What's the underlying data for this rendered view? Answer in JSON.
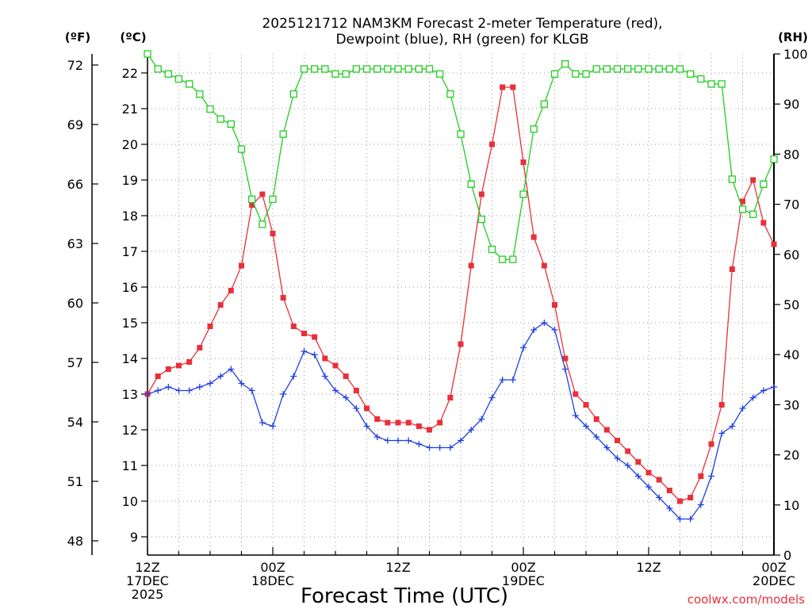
{
  "chart_data": {
    "type": "line",
    "title_line1": "2025121712 NAM3KM Forecast 2-meter Temperature (red),",
    "title_line2": "Dewpoint (blue), RH (green) for KLGB",
    "xlabel": "Forecast Time (UTC)",
    "credit": "coolwx.com/models",
    "units": {
      "f": "(ºF)",
      "c": "(ºC)",
      "rh": "(RH)"
    },
    "x_range_hours": [
      0,
      60
    ],
    "c_range": [
      8.5,
      22.5
    ],
    "rh_range": [
      0,
      100
    ],
    "x_ticks": [
      {
        "hour": 0,
        "lines": [
          "12Z",
          "17DEC",
          "2025"
        ]
      },
      {
        "hour": 12,
        "lines": [
          "00Z",
          "18DEC"
        ]
      },
      {
        "hour": 24,
        "lines": [
          "12Z"
        ]
      },
      {
        "hour": 36,
        "lines": [
          "00Z",
          "19DEC"
        ]
      },
      {
        "hour": 48,
        "lines": [
          "12Z"
        ]
      },
      {
        "hour": 60,
        "lines": [
          "00Z",
          "20DEC"
        ]
      }
    ],
    "c_ticks": [
      9,
      10,
      11,
      12,
      13,
      14,
      15,
      16,
      17,
      18,
      19,
      20,
      21,
      22
    ],
    "f_ticks": [
      48,
      51,
      54,
      57,
      60,
      63,
      66,
      69,
      72
    ],
    "rh_ticks": [
      0,
      10,
      20,
      30,
      40,
      50,
      60,
      70,
      80,
      90,
      100
    ],
    "series": [
      {
        "name": "Temperature (C)",
        "axis": "c",
        "color": "#e8303a",
        "marker": "filled-square",
        "values": [
          13.0,
          13.5,
          13.7,
          13.8,
          13.9,
          14.3,
          14.9,
          15.5,
          15.9,
          16.6,
          18.3,
          18.6,
          17.5,
          15.7,
          14.9,
          14.7,
          14.6,
          14.0,
          13.8,
          13.5,
          13.1,
          12.6,
          12.3,
          12.2,
          12.2,
          12.2,
          12.1,
          12.0,
          12.2,
          12.9,
          14.4,
          16.6,
          18.6,
          20.0,
          21.6,
          21.6,
          19.5,
          17.4,
          16.6,
          15.5,
          14.0,
          13.0,
          12.7,
          12.3,
          12.0,
          11.7,
          11.4,
          11.1,
          10.8,
          10.6,
          10.3,
          10.0,
          10.1,
          10.7,
          11.6,
          12.7,
          16.5,
          18.4,
          19.0,
          17.8,
          17.2
        ]
      },
      {
        "name": "Dewpoint (C)",
        "axis": "c",
        "color": "#2040e0",
        "marker": "plus",
        "values": [
          13.0,
          13.1,
          13.2,
          13.1,
          13.1,
          13.2,
          13.3,
          13.5,
          13.7,
          13.3,
          13.1,
          12.2,
          12.1,
          13.0,
          13.5,
          14.2,
          14.1,
          13.5,
          13.1,
          12.9,
          12.6,
          12.1,
          11.8,
          11.7,
          11.7,
          11.7,
          11.6,
          11.5,
          11.5,
          11.5,
          11.7,
          12.0,
          12.3,
          12.9,
          13.4,
          13.4,
          14.3,
          14.8,
          15.0,
          14.8,
          13.7,
          12.4,
          12.1,
          11.8,
          11.5,
          11.2,
          11.0,
          10.7,
          10.4,
          10.1,
          9.8,
          9.5,
          9.5,
          9.9,
          10.7,
          11.9,
          12.1,
          12.6,
          12.9,
          13.1,
          13.2
        ]
      },
      {
        "name": "RH (%)",
        "axis": "rh",
        "color": "#22cc22",
        "marker": "open-square",
        "values": [
          100,
          97,
          96,
          95,
          94,
          92,
          89,
          87,
          86,
          81,
          71,
          66,
          71,
          84,
          92,
          97,
          97,
          97,
          96,
          96,
          97,
          97,
          97,
          97,
          97,
          97,
          97,
          97,
          96,
          92,
          84,
          74,
          67,
          61,
          59,
          59,
          72,
          85,
          90,
          96,
          98,
          96,
          96,
          97,
          97,
          97,
          97,
          97,
          97,
          97,
          97,
          97,
          96,
          95,
          94,
          94,
          75,
          69,
          68,
          74,
          79
        ]
      }
    ]
  }
}
